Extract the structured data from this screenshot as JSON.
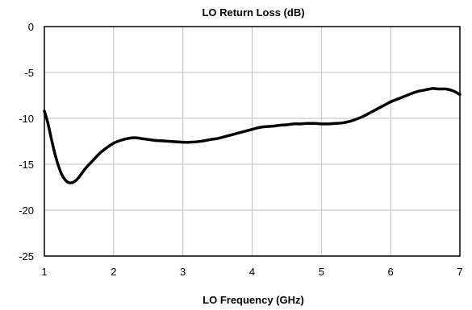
{
  "chart_data": {
    "type": "line",
    "title": "LO Return Loss (dB)",
    "xlabel": "LO Frequency (GHz)",
    "ylabel": "",
    "xlim": [
      1,
      7
    ],
    "ylim": [
      -25,
      0
    ],
    "x_ticks": [
      1,
      2,
      3,
      4,
      5,
      6,
      7
    ],
    "y_ticks": [
      0,
      -5,
      -10,
      -15,
      -20,
      -25
    ],
    "grid": true,
    "legend": "none",
    "series": [
      {
        "color": "#000000",
        "x": [
          1.0,
          1.05,
          1.1,
          1.15,
          1.2,
          1.25,
          1.3,
          1.35,
          1.4,
          1.45,
          1.5,
          1.6,
          1.7,
          1.8,
          1.9,
          2.0,
          2.1,
          2.2,
          2.3,
          2.4,
          2.5,
          2.6,
          2.7,
          2.8,
          2.9,
          3.0,
          3.1,
          3.2,
          3.3,
          3.4,
          3.5,
          3.6,
          3.7,
          3.8,
          3.9,
          4.0,
          4.1,
          4.2,
          4.3,
          4.4,
          4.5,
          4.6,
          4.7,
          4.8,
          4.9,
          5.0,
          5.1,
          5.2,
          5.3,
          5.4,
          5.5,
          5.6,
          5.7,
          5.8,
          5.9,
          6.0,
          6.1,
          6.2,
          6.3,
          6.4,
          6.5,
          6.6,
          6.7,
          6.8,
          6.9,
          7.0
        ],
        "y": [
          -9.2,
          -10.5,
          -12.2,
          -13.8,
          -15.1,
          -16.1,
          -16.7,
          -17.0,
          -17.0,
          -16.8,
          -16.4,
          -15.4,
          -14.6,
          -13.8,
          -13.2,
          -12.7,
          -12.4,
          -12.2,
          -12.1,
          -12.2,
          -12.3,
          -12.4,
          -12.45,
          -12.5,
          -12.55,
          -12.6,
          -12.6,
          -12.55,
          -12.45,
          -12.3,
          -12.2,
          -12.0,
          -11.8,
          -11.6,
          -11.4,
          -11.2,
          -11.0,
          -10.9,
          -10.85,
          -10.75,
          -10.7,
          -10.6,
          -10.6,
          -10.55,
          -10.55,
          -10.6,
          -10.6,
          -10.55,
          -10.5,
          -10.35,
          -10.1,
          -9.8,
          -9.4,
          -9.0,
          -8.6,
          -8.2,
          -7.9,
          -7.6,
          -7.3,
          -7.05,
          -6.9,
          -6.75,
          -6.8,
          -6.8,
          -7.0,
          -7.4
        ]
      }
    ]
  }
}
